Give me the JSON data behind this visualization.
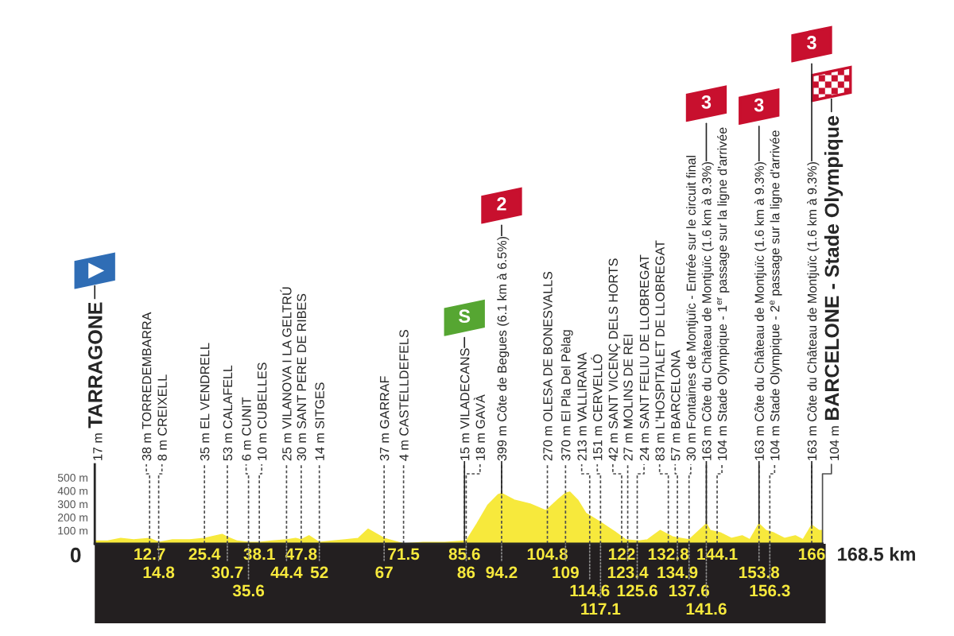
{
  "chart_data": {
    "type": "area",
    "x": [
      0,
      3,
      6,
      9,
      12.7,
      14.8,
      18,
      22,
      25.4,
      28,
      29.5,
      30.7,
      33,
      35.6,
      38.1,
      41,
      44.4,
      46.5,
      47.8,
      49.6,
      52,
      55,
      58,
      61,
      63.3,
      67,
      71.5,
      76,
      81,
      85.6,
      86,
      88.5,
      91,
      93.4,
      94.2,
      97.1,
      100.8,
      104.4,
      105.5,
      107.5,
      109,
      110,
      111.8,
      113.7,
      116.7,
      120.4,
      122.9,
      126,
      128,
      130.9,
      133.9,
      137.6,
      141.6,
      142.5,
      145,
      147.4,
      149.9,
      151.7,
      153.8,
      155.4,
      157.3,
      159.7,
      162.2,
      164,
      166,
      167.7,
      168.5
    ],
    "values": [
      20,
      20,
      40,
      30,
      40,
      10,
      30,
      30,
      40,
      60,
      70,
      50,
      20,
      10,
      10,
      20,
      30,
      40,
      30,
      60,
      10,
      20,
      30,
      40,
      110,
      40,
      0,
      10,
      10,
      20,
      20,
      150,
      290,
      370,
      380,
      330,
      300,
      250,
      280,
      340,
      380,
      390,
      330,
      230,
      170,
      90,
      30,
      20,
      30,
      100,
      50,
      30,
      150,
      100,
      80,
      40,
      60,
      30,
      150,
      100,
      80,
      40,
      60,
      30,
      140,
      100,
      100
    ],
    "color": "#f7e93c",
    "xlim": [
      0,
      168.5
    ],
    "ylim": [
      0,
      600
    ],
    "xticks": [
      12.7,
      25.4,
      38.1,
      47.8,
      71.5,
      85.6,
      104.8,
      122,
      132.8,
      144.1,
      166
    ],
    "yticks": [
      {
        "value": 100,
        "label": "100 m"
      },
      {
        "value": 200,
        "label": "200 m"
      },
      {
        "value": 300,
        "label": "300 m"
      },
      {
        "value": 400,
        "label": "400 m"
      },
      {
        "value": 500,
        "label": "500 m"
      }
    ],
    "ref_lines": [
      {
        "axis": "x",
        "value": 0,
        "label": "17 m TARRAGONE",
        "line_style": "solid"
      },
      {
        "axis": "x",
        "value": 12.7,
        "label": "38 m TORREDEMBARRA",
        "line_style": "dashed"
      },
      {
        "axis": "x",
        "value": 14.8,
        "label": "8 m CREIXELL",
        "line_style": "dashed"
      },
      {
        "axis": "x",
        "value": 25.4,
        "label": "35 m EL VENDRELL",
        "line_style": "dashed"
      },
      {
        "axis": "x",
        "value": 30.7,
        "label": "53 m CALAFELL",
        "line_style": "dashed"
      },
      {
        "axis": "x",
        "value": 35.6,
        "label": "6 m CUNIT",
        "line_style": "dashed"
      },
      {
        "axis": "x",
        "value": 38.1,
        "label": "10 m CUBELLES",
        "line_style": "dashed"
      },
      {
        "axis": "x",
        "value": 44.4,
        "label": "25 m VILANOVA I LA GELTRÚ",
        "line_style": "dashed"
      },
      {
        "axis": "x",
        "value": 47.8,
        "label": "30 m SANT PERE DE RIBES",
        "line_style": "dashed"
      },
      {
        "axis": "x",
        "value": 52,
        "label": "14 m SITGES",
        "line_style": "dashed"
      },
      {
        "axis": "x",
        "value": 67,
        "label": "37 m GARRAF",
        "line_style": "dashed"
      },
      {
        "axis": "x",
        "value": 71.5,
        "label": "4 m CASTELLDEFELS",
        "line_style": "dashed"
      },
      {
        "axis": "x",
        "value": 85.6,
        "label": "15 m VILADECANS",
        "line_style": "dashed"
      },
      {
        "axis": "x",
        "value": 86,
        "label": "18 m GAVÀ",
        "line_style": "dashed"
      },
      {
        "axis": "x",
        "value": 94.2,
        "label": "399 m Côte de Begues (6.1 km à 6.5%)",
        "line_style": "dashed"
      },
      {
        "axis": "x",
        "value": 104.8,
        "label": "270 m OLESA DE BONESVALLS",
        "line_style": "dashed"
      },
      {
        "axis": "x",
        "value": 109,
        "label": "370 m El Pla Del Pèlag",
        "line_style": "dashed"
      },
      {
        "axis": "x",
        "value": 114.6,
        "label": "213 m VALLIRANA",
        "line_style": "dashed"
      },
      {
        "axis": "x",
        "value": 117.1,
        "label": "151 m CERVELLÓ",
        "line_style": "dashed"
      },
      {
        "axis": "x",
        "value": 122,
        "label": "42 m SANT VICENÇ DELS HORTS",
        "line_style": "dashed"
      },
      {
        "axis": "x",
        "value": 123.4,
        "label": "27 m MOLINS DE REI",
        "line_style": "dashed"
      },
      {
        "axis": "x",
        "value": 125.6,
        "label": "24 m SANT FELIU DE LLOBREGAT",
        "line_style": "dashed"
      },
      {
        "axis": "x",
        "value": 132.8,
        "label": "83 m L'HOSPITALET DE LLOBREGAT",
        "line_style": "dashed"
      },
      {
        "axis": "x",
        "value": 134.9,
        "label": "57 m BARCELONA",
        "line_style": "dashed"
      },
      {
        "axis": "x",
        "value": 137.6,
        "label": "30 m Fontaines de Montjuïc - Entrée sur le circuit final",
        "line_style": "dashed"
      },
      {
        "axis": "x",
        "value": 141.6,
        "label": "163 m Côte du Château de Montjuïc (1.6 km à 9.3%)",
        "line_style": "dashed"
      },
      {
        "axis": "x",
        "value": 144.1,
        "label": "104 m Stade Olympique - 1$^{er}$ passage sur la ligne d'arrivée",
        "line_style": "dashed"
      },
      {
        "axis": "x",
        "value": 153.8,
        "label": "163 m Côte du Château de Montjuïc (1.6 km à 9.3%)",
        "line_style": "dashed"
      },
      {
        "axis": "x",
        "value": 156.3,
        "label": "104 m Stade Olympique - 2$^{e}$ passage sur la ligne d'arrivée",
        "line_style": "dashed"
      },
      {
        "axis": "x",
        "value": 166,
        "label": "163 m Côte du Château de Montjuïc (1.6 km à 9.3%)",
        "line_style": "dashed"
      },
      {
        "axis": "x",
        "value": 168.5,
        "label": "104 m BARCELONE - Stade Olympique",
        "line_style": "solid"
      }
    ],
    "annotations": [
      {
        "text": "0",
        "x": 0,
        "y": 0
      },
      {
        "text": "14.8",
        "x": 14.8,
        "y": 0
      },
      {
        "text": "30.7",
        "x": 30.7,
        "y": 0
      },
      {
        "text": "35.6",
        "x": 35.6,
        "y": 0
      },
      {
        "text": "44.4",
        "x": 44.4,
        "y": 0
      },
      {
        "text": "52",
        "x": 52,
        "y": 0
      },
      {
        "text": "67",
        "x": 67,
        "y": 0
      },
      {
        "text": "86",
        "x": 86,
        "y": 0
      },
      {
        "text": "94.2",
        "x": 94.2,
        "y": 0
      },
      {
        "text": "109",
        "x": 109,
        "y": 0
      },
      {
        "text": "114.6",
        "x": 114.6,
        "y": 0
      },
      {
        "text": "117.1",
        "x": 117.1,
        "y": 0
      },
      {
        "text": "123.4",
        "x": 123.4,
        "y": 0
      },
      {
        "text": "125.6",
        "x": 125.6,
        "y": 0
      },
      {
        "text": "134.9",
        "x": 134.9,
        "y": 0
      },
      {
        "text": "137.6",
        "x": 137.6,
        "y": 0
      },
      {
        "text": "141.6",
        "x": 141.6,
        "y": 0
      },
      {
        "text": "153.8",
        "x": 153.8,
        "y": 0
      },
      {
        "text": "156.3",
        "x": 156.3,
        "y": 0
      },
      {
        "text": "168.5 km",
        "x": 168.5,
        "y": 0
      },
      {
        "text": "S",
        "x": 85.6,
        "y": 20
      },
      {
        "text": "2",
        "x": 94.2,
        "y": 380
      },
      {
        "text": "3",
        "x": 153.8,
        "y": 150
      },
      {
        "text": "3",
        "x": 141.6,
        "y": 150
      },
      {
        "text": "3",
        "x": 166,
        "y": 140
      }
    ]
  }
}
